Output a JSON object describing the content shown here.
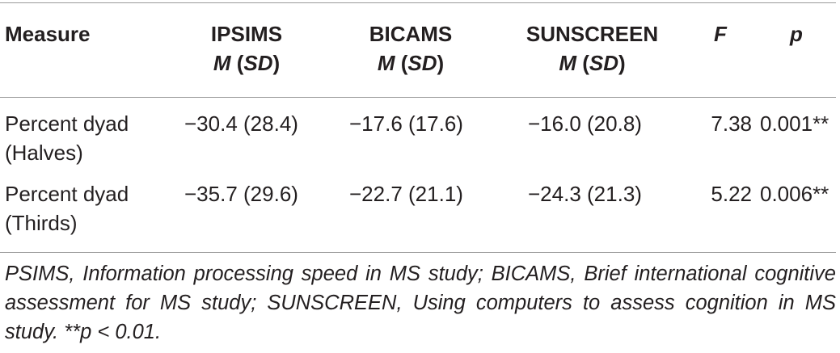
{
  "table": {
    "headers": {
      "measure": "Measure",
      "ipsims": {
        "line1": "IPSIMS",
        "m": "M",
        "sd": "SD"
      },
      "bicams": {
        "line1": "BICAMS",
        "m": "M",
        "sd": "SD"
      },
      "sunscreen": {
        "line1": "SUNSCREEN",
        "m": "M",
        "sd": "SD"
      },
      "f": "F",
      "p": "p"
    },
    "rows": [
      {
        "measure_line1": "Percent dyad",
        "measure_line2": "(Halves)",
        "ipsims": "−30.4 (28.4)",
        "bicams": "−17.6 (17.6)",
        "sunscreen": "−16.0 (20.8)",
        "f": "7.38",
        "p": "0.001**"
      },
      {
        "measure_line1": "Percent dyad",
        "measure_line2": "(Thirds)",
        "ipsims": "−35.7 (29.6)",
        "bicams": "−22.7 (21.1)",
        "sunscreen": "−24.3 (21.3)",
        "f": "5.22",
        "p": "0.006**"
      }
    ],
    "footnote": "PSIMS, Information processing speed in MS study; BICAMS, Brief international cognitive assessment for MS study; SUNSCREEN, Using computers to assess cognition in MS study. **p < 0.01."
  }
}
